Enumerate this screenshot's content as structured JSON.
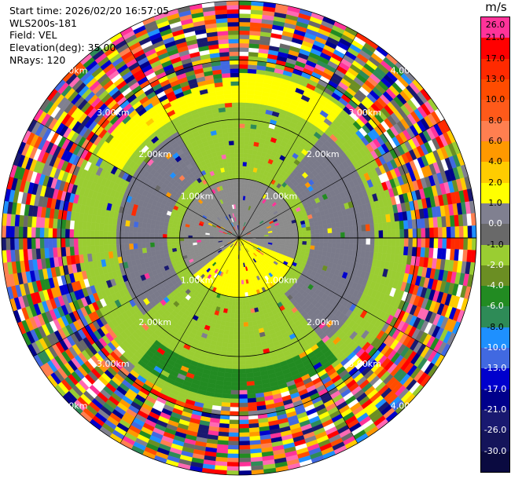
{
  "header": {
    "start_time": "Start time: 2026/02/20 16:57:05",
    "instrument": "WLS200s-181",
    "field": "Field: VEL",
    "elevation": "Elevation(deg): 35.00",
    "nrays": "NRays: 120"
  },
  "chart_data": {
    "type": "heatmap",
    "projection": "polar PPI",
    "field": "VEL",
    "units": "m/s",
    "nrays": 120,
    "elevation_deg": 35.0,
    "max_range_km": 4.0,
    "range_ring_labels": [
      {
        "text": "1.00km",
        "range_km": 1.0
      },
      {
        "text": "2.00km",
        "range_km": 2.0
      },
      {
        "text": "3.00km",
        "range_km": 3.0
      },
      {
        "text": "4.00km",
        "range_km": 4.0
      }
    ],
    "ring_label_azimuths_deg": [
      45,
      135,
      225,
      315
    ],
    "colorbar": {
      "unit_label": "m/s",
      "levels": [
        {
          "label": "26.0",
          "color": "#ff3399"
        },
        {
          "label": "21.0",
          "color": "#ff0000"
        },
        {
          "label": "17.0",
          "color": "#ff2a00"
        },
        {
          "label": "13.0",
          "color": "#ff4c00"
        },
        {
          "label": "10.0",
          "color": "#ff5a1a"
        },
        {
          "label": "8.0",
          "color": "#ff7f50"
        },
        {
          "label": "6.0",
          "color": "#ff9900"
        },
        {
          "label": "4.0",
          "color": "#ffcc00"
        },
        {
          "label": "2.0",
          "color": "#ffff00"
        },
        {
          "label": "1.0",
          "color": "#808090"
        },
        {
          "label": "0.0",
          "color": "#696969"
        },
        {
          "label": "-1.0",
          "color": "#9acd32"
        },
        {
          "label": "-2.0",
          "color": "#6b8e23"
        },
        {
          "label": "-4.0",
          "color": "#228b22"
        },
        {
          "label": "-6.0",
          "color": "#2e8b57"
        },
        {
          "label": "-8.0",
          "color": "#1e90ff"
        },
        {
          "label": "-10.0",
          "color": "#4169e1"
        },
        {
          "label": "-13.0",
          "color": "#0000cd"
        },
        {
          "label": "-17.0",
          "color": "#00008b"
        },
        {
          "label": "-21.0",
          "color": "#191970"
        },
        {
          "label": "-26.0",
          "color": "#14145a"
        },
        {
          "label": "-30.0",
          "color": "#0a0a40"
        }
      ]
    },
    "noise_palette": [
      "#ff3399",
      "#ff0000",
      "#ff2a00",
      "#ff4c00",
      "#ff7f50",
      "#ff9900",
      "#ffcc00",
      "#ffff00",
      "#808090",
      "#696969",
      "#9acd32",
      "#6b8e23",
      "#228b22",
      "#2e8b57",
      "#1e90ff",
      "#4169e1",
      "#0000cd",
      "#00008b",
      "#191970",
      "#ff69b4",
      "#ffffff"
    ],
    "regions": [
      {
        "name": "inner-gray",
        "r0_km": 0.0,
        "r1_km": 1.0,
        "az0_deg": 0,
        "az1_deg": 360,
        "color": "#8c8c8c"
      },
      {
        "name": "south-yellow",
        "r0_km": 0.0,
        "r1_km": 1.85,
        "az0_deg": 110,
        "az1_deg": 230,
        "color": "#ffff00"
      },
      {
        "name": "mid-green",
        "r0_km": 1.0,
        "r1_km": 2.3,
        "az0_deg": 0,
        "az1_deg": 360,
        "color": "#9acd32"
      },
      {
        "name": "west-gray",
        "r0_km": 1.2,
        "r1_km": 2.1,
        "az0_deg": 230,
        "az1_deg": 330,
        "color": "#7a7a8a"
      },
      {
        "name": "east-gray",
        "r0_km": 1.2,
        "r1_km": 2.3,
        "az0_deg": 40,
        "az1_deg": 140,
        "color": "#7a7a8a"
      },
      {
        "name": "north-yellow-arc",
        "r0_km": 2.3,
        "r1_km": 2.8,
        "az0_deg": 300,
        "az1_deg": 400,
        "color": "#ffff00"
      },
      {
        "name": "south-darkgreen-arc",
        "r0_km": 2.2,
        "r1_km": 2.7,
        "az0_deg": 140,
        "az1_deg": 220,
        "color": "#228b22"
      }
    ]
  }
}
